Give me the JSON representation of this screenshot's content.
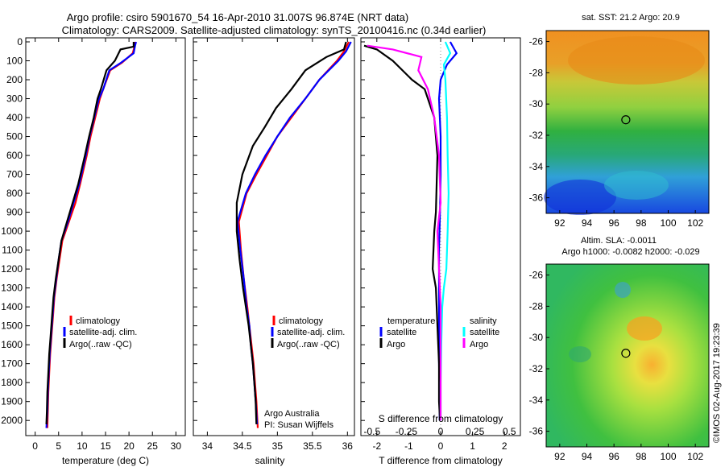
{
  "header": {
    "title_line1": "Argo profile: csiro 5901670_54 16-Apr-2010 31.007S 96.874E (NRT data)",
    "title_line2": "Climatology: CARS2009. Satellite-adjusted climatology: synTS_20100416.nc (0.34d earlier)"
  },
  "colors": {
    "climatology": "#ff0000",
    "satellite_temperature": "#0000ff",
    "satellite_salinity": "#00ffff",
    "argo_temperature": "#000000",
    "argo_salinity": "#ff00ff"
  },
  "chart_data": [
    {
      "id": "temperature",
      "type": "line",
      "xlabel": "temperature (deg C)",
      "ylabel": "",
      "xlim": [
        -2,
        32
      ],
      "ylim": [
        0,
        2080
      ],
      "y_inverted": true,
      "xticks": [
        0,
        5,
        10,
        15,
        20,
        25,
        30
      ],
      "yticks": [
        0,
        100,
        200,
        300,
        400,
        500,
        600,
        700,
        800,
        900,
        1000,
        1100,
        1200,
        1300,
        1400,
        1500,
        1600,
        1700,
        1800,
        1900,
        2000
      ],
      "legend": [
        "climatology",
        "satellite-adj. clim.",
        "Argo(..raw -QC)"
      ],
      "legend_position": "lower-center",
      "series": [
        {
          "name": "climatology",
          "color": "#ff0000",
          "x": [
            21.3,
            21.2,
            20.8,
            18.5,
            16.0,
            14.5,
            13.8,
            12.8,
            11.8,
            11.0,
            9.6,
            8.6,
            7.2,
            5.8,
            5.2,
            4.6,
            4.1,
            3.8,
            3.5,
            3.2,
            3.0,
            2.8,
            2.7,
            2.6
          ],
          "y": [
            0,
            20,
            60,
            110,
            150,
            250,
            300,
            400,
            500,
            600,
            750,
            850,
            950,
            1050,
            1150,
            1250,
            1350,
            1450,
            1550,
            1650,
            1750,
            1850,
            1950,
            2040
          ]
        },
        {
          "name": "satellite-adj. clim.",
          "color": "#0000ff",
          "x": [
            21.5,
            21.3,
            21.0,
            18.3,
            15.8,
            14.5,
            13.6,
            12.6,
            11.6,
            10.8,
            9.4,
            8.2,
            7.0,
            5.6,
            5.0,
            4.5,
            4.0,
            3.7,
            3.4,
            3.1,
            2.9,
            2.7,
            2.6,
            2.4
          ],
          "y": [
            0,
            20,
            60,
            110,
            150,
            250,
            300,
            400,
            500,
            600,
            750,
            850,
            950,
            1050,
            1150,
            1250,
            1350,
            1450,
            1550,
            1650,
            1750,
            1850,
            1950,
            2040
          ]
        },
        {
          "name": "Argo(..raw -QC)",
          "color": "#000000",
          "x": [
            21.0,
            21.0,
            18.2,
            17.0,
            15.2,
            14.0,
            13.3,
            12.5,
            11.5,
            10.6,
            9.2,
            8.0,
            6.8,
            5.6,
            5.0,
            4.4,
            3.9,
            3.6,
            3.3,
            3.0,
            2.8,
            2.6,
            2.5,
            2.4
          ],
          "y": [
            0,
            25,
            40,
            100,
            150,
            250,
            300,
            400,
            500,
            600,
            750,
            850,
            950,
            1050,
            1150,
            1250,
            1350,
            1450,
            1550,
            1650,
            1750,
            1850,
            1950,
            2020
          ]
        }
      ]
    },
    {
      "id": "salinity",
      "type": "line",
      "xlabel": "salinity",
      "ylabel": "",
      "xlim": [
        33.8,
        36.1
      ],
      "ylim": [
        0,
        2080
      ],
      "y_inverted": true,
      "xticks": [
        34,
        34.5,
        35,
        35.5,
        36
      ],
      "legend": [
        "climatology",
        "satellite-adj. clim.",
        "Argo(..raw -QC)"
      ],
      "legend_position": "lower-center",
      "annotation": [
        "Argo Australia",
        "PI: Susan Wijffels"
      ],
      "series": [
        {
          "name": "climatology",
          "color": "#ff0000",
          "x": [
            36.02,
            35.95,
            35.85,
            35.6,
            35.4,
            35.2,
            35.0,
            34.85,
            34.7,
            34.56,
            34.45,
            34.48,
            34.52,
            34.57,
            34.6,
            34.63,
            34.66,
            34.68,
            34.7,
            34.72
          ],
          "y": [
            0,
            50,
            100,
            200,
            300,
            400,
            500,
            600,
            700,
            800,
            950,
            1100,
            1250,
            1400,
            1500,
            1600,
            1700,
            1800,
            1900,
            2040
          ]
        },
        {
          "name": "satellite-adj. clim.",
          "color": "#0000ff",
          "x": [
            36.05,
            35.98,
            35.87,
            35.6,
            35.4,
            35.18,
            35.0,
            34.83,
            34.68,
            34.55,
            34.43,
            34.47,
            34.52,
            34.56,
            34.6,
            34.62,
            34.65,
            34.67,
            34.69,
            34.71
          ],
          "y": [
            0,
            50,
            100,
            200,
            300,
            400,
            500,
            600,
            700,
            800,
            950,
            1100,
            1250,
            1400,
            1500,
            1600,
            1700,
            1800,
            1900,
            2020
          ]
        },
        {
          "name": "Argo(..raw -QC)",
          "color": "#000000",
          "x": [
            35.98,
            35.95,
            35.7,
            35.4,
            35.2,
            34.98,
            34.82,
            34.65,
            34.5,
            34.42,
            34.42,
            34.46,
            34.51,
            34.55,
            34.59,
            34.62,
            34.65,
            34.67,
            34.69,
            34.7
          ],
          "y": [
            0,
            40,
            80,
            150,
            250,
            350,
            450,
            550,
            700,
            850,
            1000,
            1150,
            1300,
            1400,
            1500,
            1600,
            1700,
            1800,
            1900,
            2020
          ]
        }
      ]
    },
    {
      "id": "difference",
      "type": "line",
      "xlabel": "T difference from climatology",
      "xlabel_top": "S difference from climatology",
      "xlim": [
        -2.5,
        2.5
      ],
      "ylim": [
        0,
        2080
      ],
      "y_inverted": true,
      "xticks": [
        -2,
        -1,
        0,
        1,
        2
      ],
      "xticks_salinity": [
        "-0.5",
        "-0.25",
        "0",
        "0.25",
        "0.5"
      ],
      "legend_temperature_title": "temperature",
      "legend_salinity_title": "salinity",
      "legend": [
        "satellite",
        "Argo",
        "satellite",
        "Argo"
      ],
      "legend_position": "center",
      "series": [
        {
          "name": "satellite",
          "group": "temperature",
          "color": "#0000ff",
          "x": [
            0.3,
            0.5,
            0.2,
            0.0,
            -0.05,
            0.0,
            0.0,
            -0.02,
            -0.05,
            -0.05,
            -0.05,
            -0.05,
            -0.04,
            -0.03,
            -0.03
          ],
          "y": [
            0,
            60,
            120,
            200,
            300,
            500,
            700,
            900,
            1100,
            1300,
            1500,
            1700,
            1800,
            1900,
            2000
          ]
        },
        {
          "name": "Argo",
          "group": "temperature",
          "color": "#000000",
          "x": [
            -2.4,
            -2.0,
            -1.5,
            -0.9,
            -0.5,
            -0.2,
            -0.1,
            -0.15,
            -0.2,
            -0.25,
            -0.15,
            -0.1,
            -0.05,
            -0.05,
            -0.02
          ],
          "y": [
            20,
            40,
            100,
            200,
            250,
            400,
            600,
            900,
            1000,
            1200,
            1300,
            1500,
            1700,
            1900,
            2000
          ]
        },
        {
          "name": "satellite",
          "group": "salinity",
          "color": "#00ffff",
          "x": [
            0.15,
            0.3,
            0.1,
            0.15,
            0.2,
            0.22,
            0.25,
            0.22,
            0.18,
            0.1,
            0.05,
            0.02,
            0.0,
            0.0
          ],
          "y": [
            0,
            60,
            120,
            200,
            400,
            600,
            800,
            1000,
            1200,
            1300,
            1400,
            1600,
            1800,
            2000
          ]
        },
        {
          "name": "Argo",
          "group": "salinity",
          "color": "#ff00ff",
          "x": [
            -2.3,
            -1.5,
            -0.6,
            -0.7,
            -0.4,
            -0.2,
            -0.05,
            0.0,
            -0.1,
            -0.05,
            0.0,
            0.0,
            0.0
          ],
          "y": [
            20,
            40,
            80,
            150,
            250,
            400,
            600,
            850,
            1000,
            1200,
            1400,
            1700,
            2000
          ]
        }
      ]
    },
    {
      "id": "sst_map",
      "type": "heatmap",
      "title": "sat. SST: 21.2 Argo: 20.9",
      "xticks": [
        92,
        94,
        96,
        98,
        100,
        102
      ],
      "yticks": [
        -26,
        -28,
        -30,
        -32,
        -34,
        -36
      ],
      "xlim": [
        91,
        103
      ],
      "ylim": [
        -37,
        -25.3
      ],
      "marker": {
        "lon": 96.874,
        "lat": -31.007
      }
    },
    {
      "id": "sla_map",
      "type": "heatmap",
      "title_line1": "Altim. SLA: -0.0011",
      "title_line2": "Argo h1000: -0.0082 h2000: -0.029",
      "xticks": [
        92,
        94,
        96,
        98,
        100,
        102
      ],
      "yticks": [
        -26,
        -28,
        -30,
        -32,
        -34,
        -36
      ],
      "xlim": [
        91,
        103
      ],
      "ylim": [
        -37,
        -25.3
      ],
      "marker": {
        "lon": 96.874,
        "lat": -31.007
      }
    }
  ],
  "footer": {
    "credit": "©IMOS 02-Aug-2017 19:23:39"
  }
}
